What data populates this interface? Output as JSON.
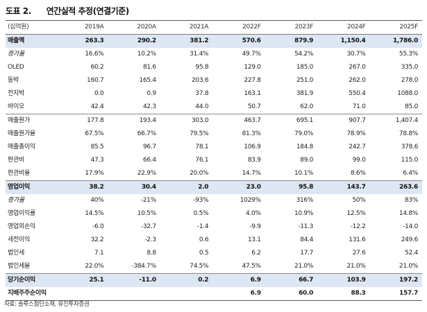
{
  "figure": {
    "number": "도표 2.",
    "title": "연간실적 추정(연결기준)"
  },
  "table": {
    "unit_label": "(십억원)",
    "columns": [
      "2019A",
      "2020A",
      "2021A",
      "2022F",
      "2023F",
      "2024F",
      "2025F"
    ],
    "rows": [
      {
        "label": "매출액",
        "values": [
          "263.3",
          "290.2",
          "381.2",
          "570.6",
          "879.9",
          "1,150.4",
          "1,786.0"
        ]
      },
      {
        "label": "증가율",
        "values": [
          "16.6%",
          "10.2%",
          "31.4%",
          "49.7%",
          "54.2%",
          "30.7%",
          "55.3%"
        ]
      },
      {
        "label": "OLED",
        "values": [
          "60.2",
          "81.6",
          "95.8",
          "129.0",
          "185.0",
          "267.0",
          "335.0"
        ]
      },
      {
        "label": "동박",
        "values": [
          "160.7",
          "165.4",
          "203.6",
          "227.8",
          "251.0",
          "262.0",
          "278.0"
        ]
      },
      {
        "label": "전지박",
        "values": [
          "0.0",
          "0.9",
          "37.8",
          "163.1",
          "381.9",
          "550.4",
          "1088.0"
        ]
      },
      {
        "label": "바이오",
        "values": [
          "42.4",
          "42.3",
          "44.0",
          "50.7",
          "62.0",
          "71.0",
          "85.0"
        ]
      },
      {
        "label": "매출원가",
        "values": [
          "177.8",
          "193.4",
          "303.0",
          "463.7",
          "695.1",
          "907.7",
          "1,407.4"
        ]
      },
      {
        "label": "매출원가율",
        "values": [
          "67.5%",
          "66.7%",
          "79.5%",
          "81.3%",
          "79.0%",
          "78.9%",
          "78.8%"
        ]
      },
      {
        "label": "매출총이익",
        "values": [
          "85.5",
          "96.7",
          "78.1",
          "106.9",
          "184.8",
          "242.7",
          "378.6"
        ]
      },
      {
        "label": "판관비",
        "values": [
          "47.3",
          "66.4",
          "76.1",
          "83.9",
          "89.0",
          "99.0",
          "115.0"
        ]
      },
      {
        "label": "판관비율",
        "values": [
          "17.9%",
          "22.9%",
          "20.0%",
          "14.7%",
          "10.1%",
          "8.6%",
          "6.4%"
        ]
      },
      {
        "label": "영업이익",
        "values": [
          "38.2",
          "30.4",
          "2.0",
          "23.0",
          "95.8",
          "143.7",
          "263.6"
        ]
      },
      {
        "label": "증가율",
        "values": [
          "40%",
          "-21%",
          "-93%",
          "1029%",
          "316%",
          "50%",
          "83%"
        ]
      },
      {
        "label": "영업이익률",
        "values": [
          "14.5%",
          "10.5%",
          "0.5%",
          "4.0%",
          "10.9%",
          "12.5%",
          "14.8%"
        ]
      },
      {
        "label": "영업외손익",
        "values": [
          "-6.0",
          "-32.7",
          "-1.4",
          "-9.9",
          "-11.3",
          "-12.2",
          "-14.0"
        ]
      },
      {
        "label": "세전이익",
        "values": [
          "32.2",
          "-2.3",
          "0.6",
          "13.1",
          "84.4",
          "131.6",
          "249.6"
        ]
      },
      {
        "label": "법인세",
        "values": [
          "7.1",
          "8.8",
          "0.5",
          "6.2",
          "17.7",
          "27.6",
          "52.4"
        ]
      },
      {
        "label": "법인세율",
        "values": [
          "22.0%",
          "-384.7%",
          "74.5%",
          "47.5%",
          "21.0%",
          "21.0%",
          "21.0%"
        ]
      },
      {
        "label": "당기순이익",
        "values": [
          "25.1",
          "-11.0",
          "0.2",
          "6.9",
          "66.7",
          "103.9",
          "197.2"
        ]
      },
      {
        "label": "지배주주순이익",
        "values": [
          "",
          "",
          "",
          "6.9",
          "60.0",
          "88.3",
          "157.7"
        ]
      }
    ]
  },
  "source": "자료: 솔루스첨단소재, 유진투자증권"
}
